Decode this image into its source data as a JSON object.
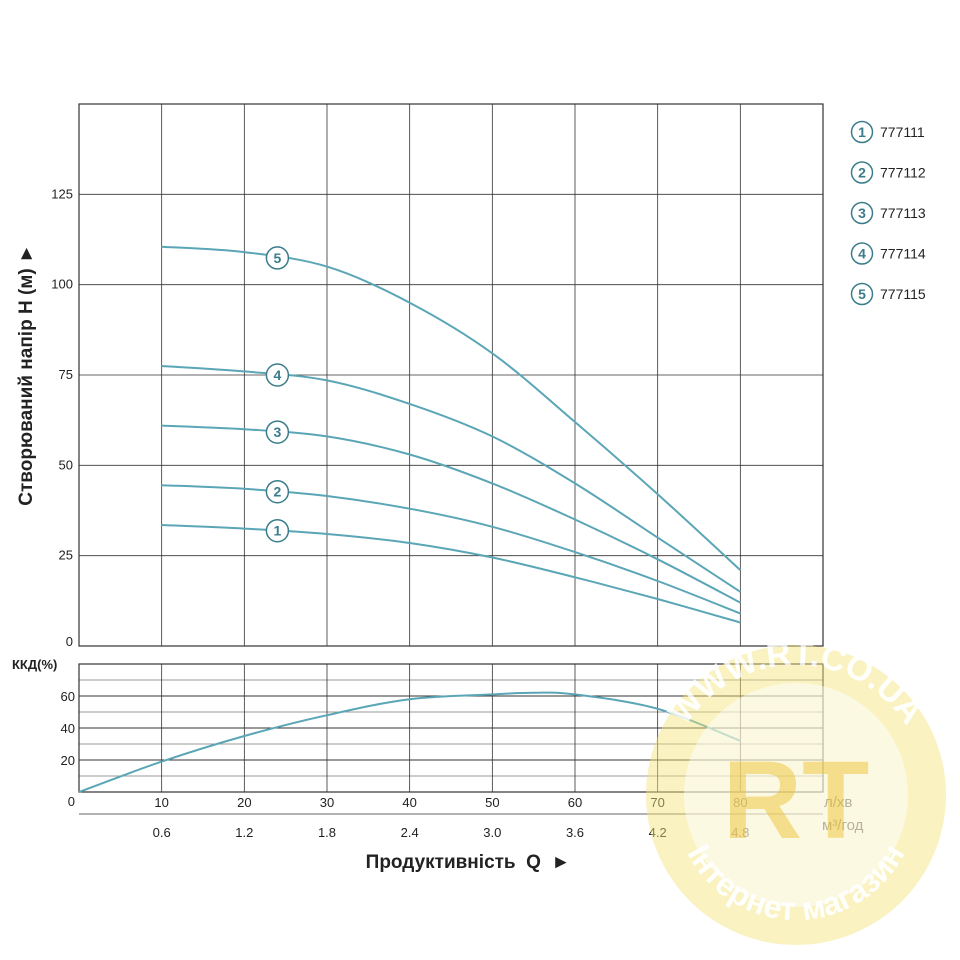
{
  "chart_data": {
    "type": "line",
    "title": "",
    "head_chart": {
      "ylabel": "Створюваний напір H (м) ►",
      "yticks": [
        "0",
        "25",
        "50",
        "75",
        "100",
        "125"
      ],
      "ylim": [
        0,
        150
      ],
      "xlim": [
        0,
        90
      ],
      "series": [
        {
          "name": "777111",
          "marker": "1",
          "x": [
            10,
            20,
            30,
            40,
            50,
            60,
            70,
            80
          ],
          "y": [
            33.5,
            32.5,
            31,
            28.5,
            24.5,
            19,
            13,
            6.5
          ]
        },
        {
          "name": "777112",
          "marker": "2",
          "x": [
            10,
            20,
            30,
            40,
            50,
            60,
            70,
            80
          ],
          "y": [
            44.5,
            43.5,
            41.5,
            38,
            33,
            26,
            18,
            9
          ]
        },
        {
          "name": "777113",
          "marker": "3",
          "x": [
            10,
            20,
            30,
            40,
            50,
            60,
            70,
            80
          ],
          "y": [
            61,
            60,
            58,
            53,
            45,
            35,
            24,
            12
          ]
        },
        {
          "name": "777114",
          "marker": "4",
          "x": [
            10,
            20,
            30,
            40,
            50,
            60,
            70,
            80
          ],
          "y": [
            77.5,
            76,
            73.5,
            67,
            58,
            45,
            30,
            15
          ]
        },
        {
          "name": "777115",
          "marker": "5",
          "x": [
            10,
            20,
            30,
            40,
            50,
            60,
            70,
            80
          ],
          "y": [
            110.5,
            109,
            105,
            95,
            81,
            62,
            42,
            21
          ]
        }
      ]
    },
    "efficiency_chart": {
      "ylabel": "ККД(%)",
      "yticks": [
        "0",
        "20",
        "40",
        "60"
      ],
      "ylim": [
        0,
        80
      ],
      "xlim": [
        0,
        90
      ],
      "series": [
        {
          "x": [
            0,
            10,
            20,
            30,
            40,
            50,
            55,
            60,
            70,
            80
          ],
          "y": [
            0,
            19,
            35,
            48,
            58,
            61,
            62,
            61,
            52,
            32
          ]
        }
      ]
    },
    "x_axis": {
      "ticks_lpm": [
        "10",
        "20",
        "30",
        "40",
        "50",
        "60",
        "70",
        "80"
      ],
      "ticks_m3h": [
        "0.6",
        "1.2",
        "1.8",
        "2.4",
        "3.0",
        "3.6",
        "4.2",
        "4.8"
      ],
      "unit_lpm": "л/хв",
      "unit_m3h": "м³/год",
      "label": "Продуктивність  Q  ►"
    },
    "legend": {
      "placement": "right",
      "items": [
        {
          "marker": "1",
          "label": "777111"
        },
        {
          "marker": "2",
          "label": "777112"
        },
        {
          "marker": "3",
          "label": "777113"
        },
        {
          "marker": "4",
          "label": "777114"
        },
        {
          "marker": "5",
          "label": "777115"
        }
      ]
    },
    "colors": {
      "curve": "#5aa6b6",
      "grid": "#333333",
      "marker_ring": "#3a7d8a"
    },
    "grid": true
  },
  "watermark": {
    "top_text": "WWW.RT.CO.UA",
    "bottom_text": "Інтернет магазин",
    "logo": "RT"
  }
}
